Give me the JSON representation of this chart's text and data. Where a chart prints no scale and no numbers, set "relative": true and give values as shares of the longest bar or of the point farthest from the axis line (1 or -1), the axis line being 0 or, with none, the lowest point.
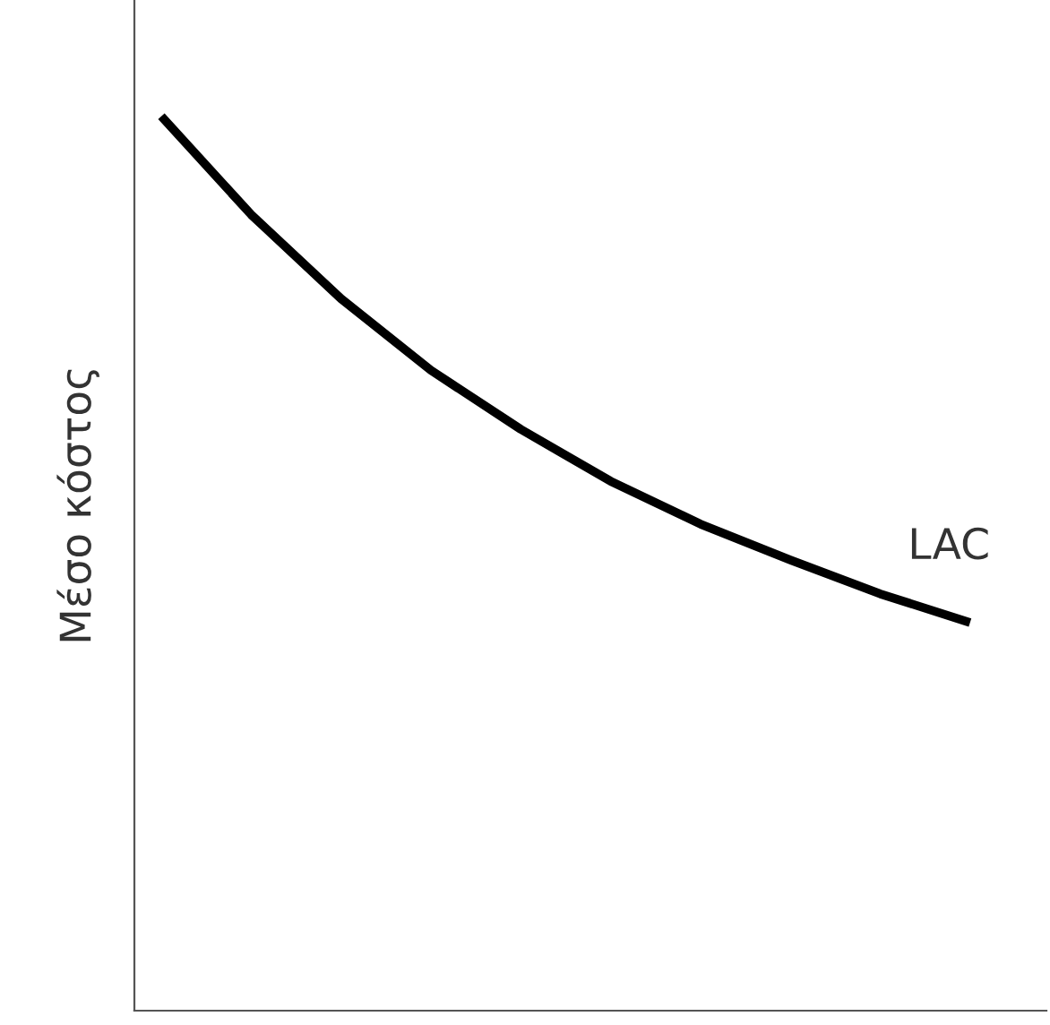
{
  "chart_data": {
    "type": "line",
    "relative": true,
    "ylabel": "Μέσο κόστος",
    "categories": [
      null,
      null,
      null,
      null,
      null,
      null,
      null,
      null,
      null,
      null
    ],
    "series": [
      {
        "color": "#000000",
        "values": [
          1.0,
          0.89,
          0.796,
          0.716,
          0.65,
          0.592,
          0.544,
          0.504,
          0.466,
          0.434
        ]
      }
    ],
    "annotations": [
      "LAC"
    ],
    "grid": false,
    "legend": false,
    "marker": "none",
    "line_style": "solid"
  }
}
